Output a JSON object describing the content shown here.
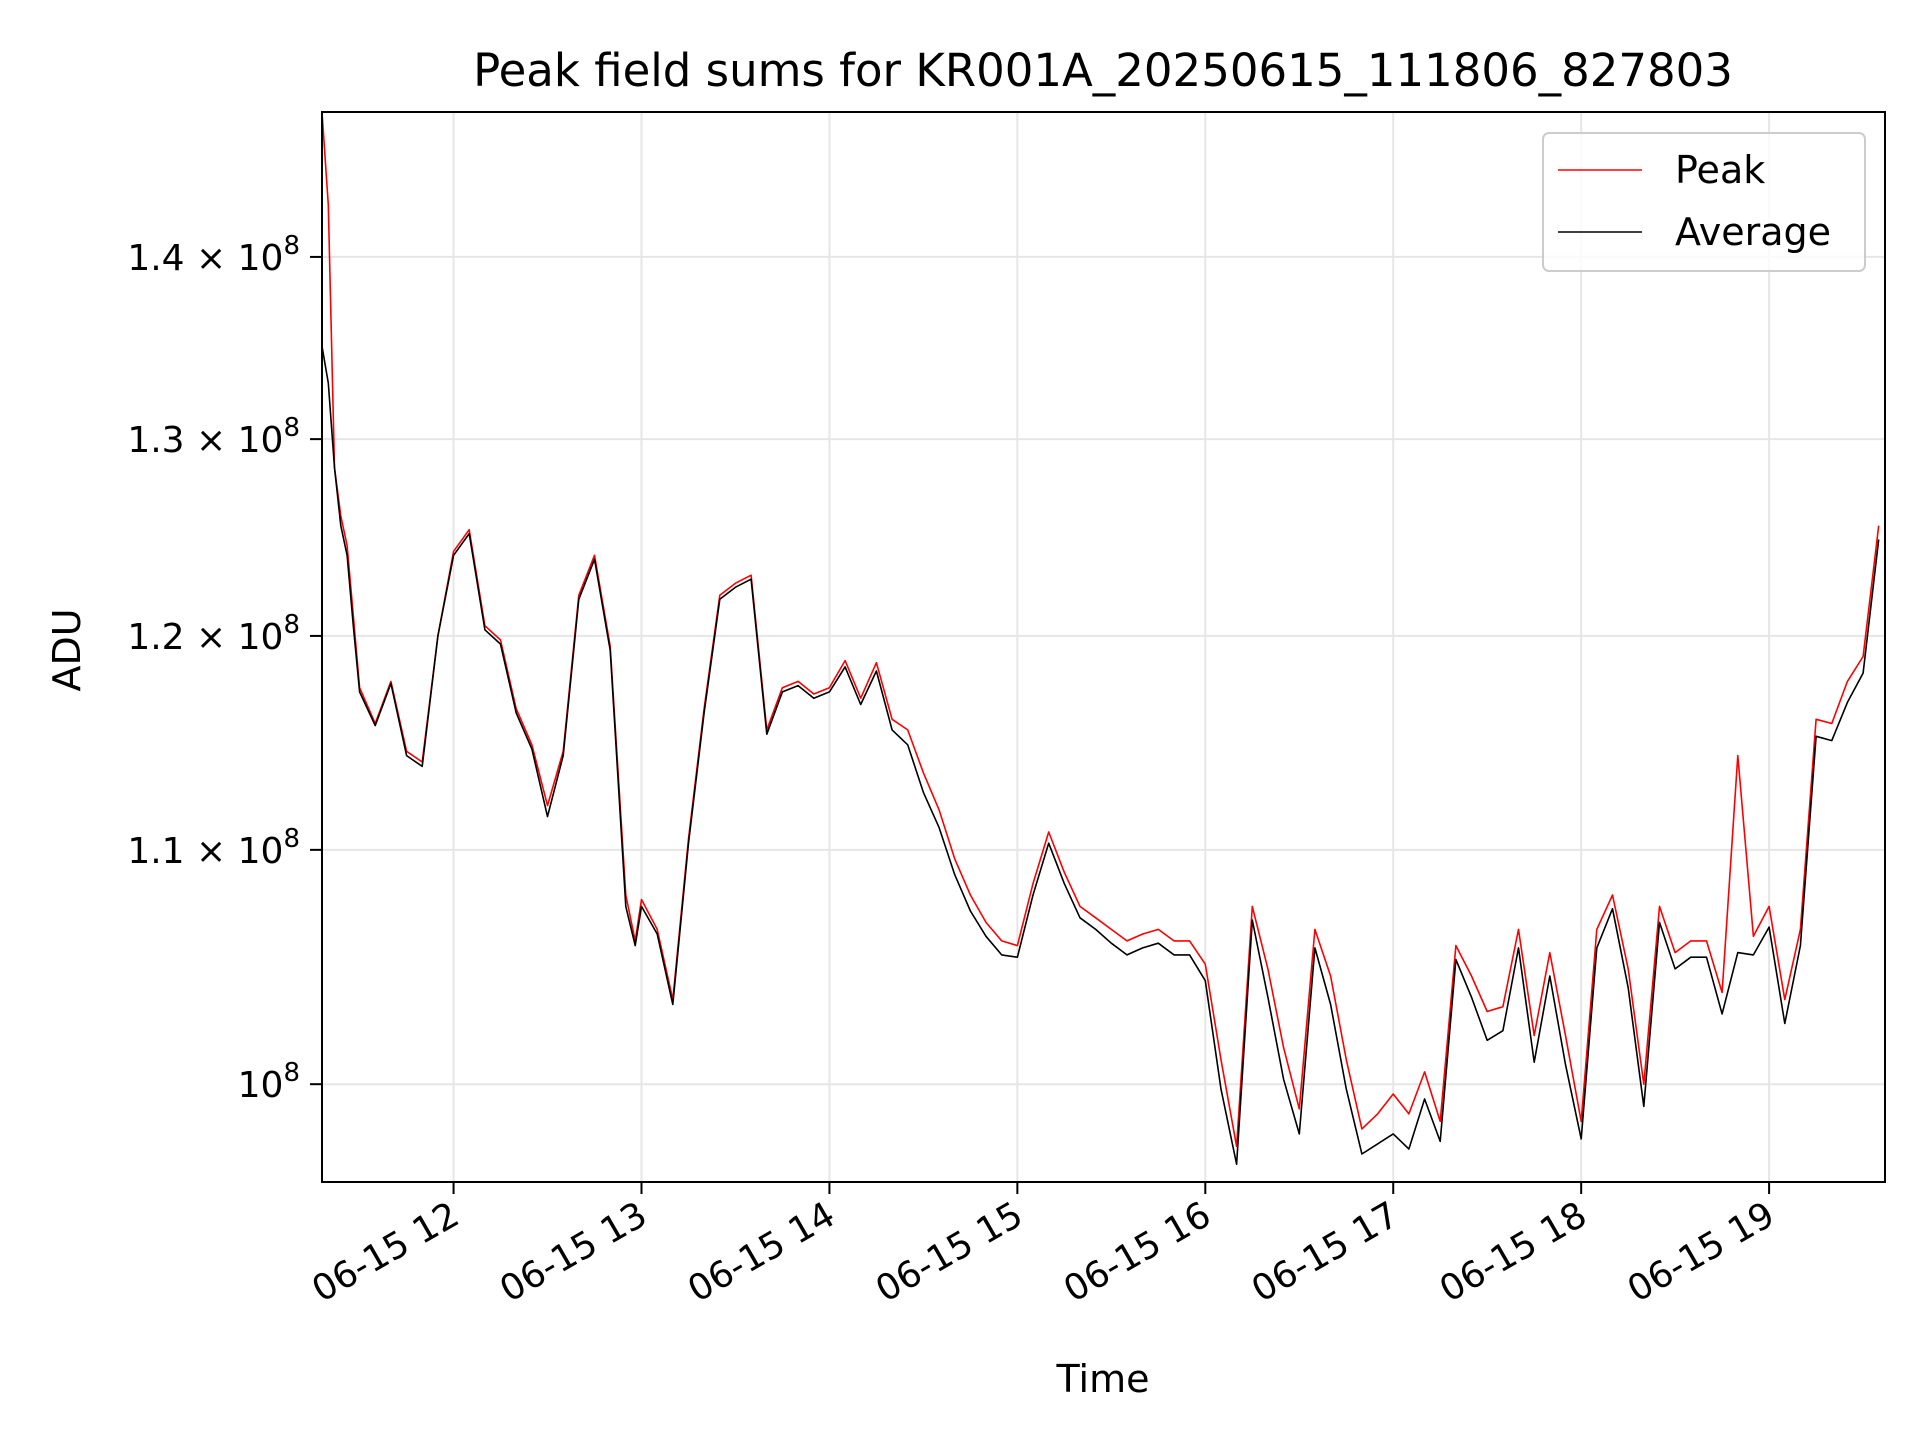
{
  "chart_data": {
    "type": "line",
    "title": "Peak field sums for KR001A_20250615_111806_827803",
    "xlabel": "Time",
    "ylabel": "ADU",
    "y_scale": "log",
    "grid": true,
    "legend_position": "top-right",
    "xlim": [
      "2025-06-15 11:18",
      "2025-06-15 19:37"
    ],
    "ylim": [
      96100000,
      148500000
    ],
    "x_ticks": [
      {
        "value": "2025-06-15 12:00",
        "label": "06-15 12"
      },
      {
        "value": "2025-06-15 13:00",
        "label": "06-15 13"
      },
      {
        "value": "2025-06-15 14:00",
        "label": "06-15 14"
      },
      {
        "value": "2025-06-15 15:00",
        "label": "06-15 15"
      },
      {
        "value": "2025-06-15 16:00",
        "label": "06-15 16"
      },
      {
        "value": "2025-06-15 17:00",
        "label": "06-15 17"
      },
      {
        "value": "2025-06-15 18:00",
        "label": "06-15 18"
      },
      {
        "value": "2025-06-15 19:00",
        "label": "06-15 19"
      }
    ],
    "y_ticks": [
      {
        "value": 100000000,
        "mantissa": "",
        "exponent": "8"
      },
      {
        "value": 110000000,
        "mantissa": "1.1",
        "exponent": "8"
      },
      {
        "value": 120000000,
        "mantissa": "1.2",
        "exponent": "8"
      },
      {
        "value": 130000000,
        "mantissa": "1.3",
        "exponent": "8"
      },
      {
        "value": 140000000,
        "mantissa": "1.4",
        "exponent": "8"
      }
    ],
    "x": [
      "2025-06-15 11:18",
      "2025-06-15 11:20",
      "2025-06-15 11:22",
      "2025-06-15 11:24",
      "2025-06-15 11:26",
      "2025-06-15 11:28",
      "2025-06-15 11:30",
      "2025-06-15 11:35",
      "2025-06-15 11:40",
      "2025-06-15 11:45",
      "2025-06-15 11:50",
      "2025-06-15 11:55",
      "2025-06-15 12:00",
      "2025-06-15 12:05",
      "2025-06-15 12:10",
      "2025-06-15 12:15",
      "2025-06-15 12:20",
      "2025-06-15 12:25",
      "2025-06-15 12:30",
      "2025-06-15 12:35",
      "2025-06-15 12:40",
      "2025-06-15 12:45",
      "2025-06-15 12:50",
      "2025-06-15 12:55",
      "2025-06-15 12:58",
      "2025-06-15 13:00",
      "2025-06-15 13:05",
      "2025-06-15 13:10",
      "2025-06-15 13:15",
      "2025-06-15 13:20",
      "2025-06-15 13:25",
      "2025-06-15 13:30",
      "2025-06-15 13:35",
      "2025-06-15 13:40",
      "2025-06-15 13:45",
      "2025-06-15 13:50",
      "2025-06-15 13:55",
      "2025-06-15 14:00",
      "2025-06-15 14:05",
      "2025-06-15 14:10",
      "2025-06-15 14:15",
      "2025-06-15 14:20",
      "2025-06-15 14:25",
      "2025-06-15 14:30",
      "2025-06-15 14:35",
      "2025-06-15 14:40",
      "2025-06-15 14:45",
      "2025-06-15 14:50",
      "2025-06-15 14:55",
      "2025-06-15 15:00",
      "2025-06-15 15:05",
      "2025-06-15 15:10",
      "2025-06-15 15:15",
      "2025-06-15 15:20",
      "2025-06-15 15:25",
      "2025-06-15 15:30",
      "2025-06-15 15:35",
      "2025-06-15 15:40",
      "2025-06-15 15:45",
      "2025-06-15 15:50",
      "2025-06-15 15:55",
      "2025-06-15 16:00",
      "2025-06-15 16:05",
      "2025-06-15 16:10",
      "2025-06-15 16:15",
      "2025-06-15 16:20",
      "2025-06-15 16:25",
      "2025-06-15 16:30",
      "2025-06-15 16:35",
      "2025-06-15 16:40",
      "2025-06-15 16:45",
      "2025-06-15 16:50",
      "2025-06-15 16:55",
      "2025-06-15 17:00",
      "2025-06-15 17:05",
      "2025-06-15 17:10",
      "2025-06-15 17:15",
      "2025-06-15 17:20",
      "2025-06-15 17:25",
      "2025-06-15 17:30",
      "2025-06-15 17:35",
      "2025-06-15 17:40",
      "2025-06-15 17:45",
      "2025-06-15 17:50",
      "2025-06-15 17:55",
      "2025-06-15 18:00",
      "2025-06-15 18:05",
      "2025-06-15 18:10",
      "2025-06-15 18:15",
      "2025-06-15 18:20",
      "2025-06-15 18:25",
      "2025-06-15 18:30",
      "2025-06-15 18:35",
      "2025-06-15 18:40",
      "2025-06-15 18:45",
      "2025-06-15 18:50",
      "2025-06-15 18:55",
      "2025-06-15 19:00",
      "2025-06-15 19:05",
      "2025-06-15 19:10",
      "2025-06-15 19:15",
      "2025-06-15 19:20",
      "2025-06-15 19:25",
      "2025-06-15 19:30",
      "2025-06-15 19:35"
    ],
    "series": [
      {
        "name": "Peak",
        "color": "#ff0000",
        "values": [
          149000000,
          143000000,
          128500000,
          126000000,
          124500000,
          121000000,
          117500000,
          115800000,
          117800000,
          114500000,
          114000000,
          120000000,
          124200000,
          125300000,
          120500000,
          119800000,
          116500000,
          114800000,
          112000000,
          114500000,
          122000000,
          124000000,
          119500000,
          108000000,
          106000000,
          107800000,
          106500000,
          103500000,
          110500000,
          116500000,
          122000000,
          122600000,
          123000000,
          115500000,
          117500000,
          117800000,
          117200000,
          117500000,
          118800000,
          117000000,
          118700000,
          116000000,
          115500000,
          113500000,
          111800000,
          109600000,
          108000000,
          106800000,
          106000000,
          105800000,
          108500000,
          110800000,
          109000000,
          107500000,
          107000000,
          106500000,
          106000000,
          106300000,
          106500000,
          106000000,
          106000000,
          105000000,
          101000000,
          97500000,
          107500000,
          104800000,
          101500000,
          99000000,
          106500000,
          104500000,
          101000000,
          98200000,
          98800000,
          99600000,
          98800000,
          100500000,
          98500000,
          105800000,
          104500000,
          103000000,
          103200000,
          106500000,
          102000000,
          105500000,
          102000000,
          98500000,
          106500000,
          108000000,
          104800000,
          100000000,
          107500000,
          105500000,
          106000000,
          106000000,
          103800000,
          114300000,
          106200000,
          107500000,
          103500000,
          106500000,
          116000000,
          115800000,
          117800000,
          119000000,
          125500000
        ]
      },
      {
        "name": "Average",
        "color": "#000000",
        "values": [
          135000000,
          133000000,
          128500000,
          125500000,
          124000000,
          120500000,
          117300000,
          115700000,
          117700000,
          114300000,
          113800000,
          120000000,
          124000000,
          125100000,
          120300000,
          119600000,
          116300000,
          114600000,
          111500000,
          114300000,
          121800000,
          123800000,
          119300000,
          107500000,
          105800000,
          107500000,
          106300000,
          103300000,
          110300000,
          116300000,
          121800000,
          122400000,
          122800000,
          115300000,
          117300000,
          117600000,
          117000000,
          117300000,
          118500000,
          116700000,
          118300000,
          115500000,
          114800000,
          112600000,
          111000000,
          108900000,
          107300000,
          106200000,
          105400000,
          105300000,
          108000000,
          110300000,
          108500000,
          107000000,
          106500000,
          105900000,
          105400000,
          105700000,
          105900000,
          105400000,
          105400000,
          104300000,
          99800000,
          96800000,
          106900000,
          103600000,
          100200000,
          98000000,
          105700000,
          103300000,
          99800000,
          97200000,
          97600000,
          98000000,
          97400000,
          99400000,
          97700000,
          105200000,
          103600000,
          101800000,
          102200000,
          105700000,
          100900000,
          104500000,
          100800000,
          97800000,
          105700000,
          107400000,
          104000000,
          99100000,
          106800000,
          104800000,
          105300000,
          105300000,
          102900000,
          105500000,
          105400000,
          106600000,
          102500000,
          105800000,
          115200000,
          115000000,
          116800000,
          118200000,
          124800000
        ]
      }
    ]
  }
}
